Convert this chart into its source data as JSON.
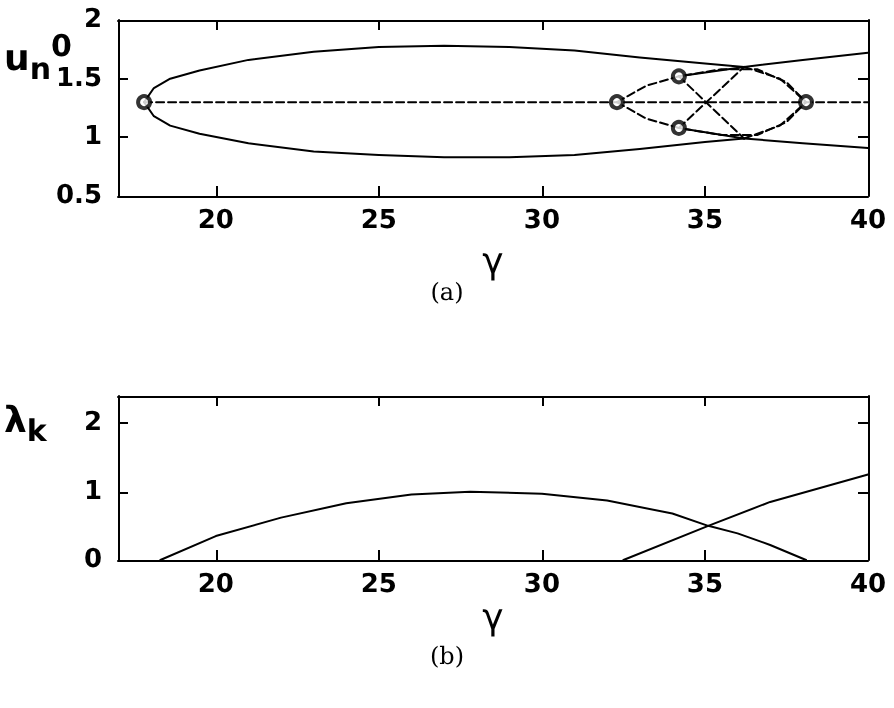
{
  "chart_data": [
    {
      "type": "line",
      "xlabel": "γ",
      "ylabel": "u$_{n}$$^{0}$",
      "annotations": [
        "(a)"
      ],
      "xlim": [
        17,
        40
      ],
      "xticks": [
        20,
        25,
        30,
        35,
        40
      ],
      "ylim": [
        0.5,
        2
      ],
      "yticks": [
        0.5,
        1,
        1.5,
        2
      ],
      "grid": false,
      "series": [
        {
          "color": "#000000",
          "line_style": "dashed",
          "x": [
            17.8,
            40
          ],
          "values": [
            1.3,
            1.3
          ]
        },
        {
          "color": "#000000",
          "line_style": "solid",
          "x": [
            17.8,
            18.1,
            18.6,
            19.5,
            21,
            23,
            25,
            27,
            29,
            31,
            33,
            35,
            36.2
          ],
          "values": [
            1.3,
            1.42,
            1.5,
            1.57,
            1.66,
            1.73,
            1.77,
            1.78,
            1.77,
            1.74,
            1.68,
            1.63,
            1.6
          ]
        },
        {
          "color": "#000000",
          "line_style": "solid",
          "x": [
            17.8,
            18.1,
            18.6,
            19.5,
            21,
            23,
            25,
            27,
            29,
            31,
            33,
            35,
            36.2
          ],
          "values": [
            1.3,
            1.18,
            1.1,
            1.03,
            0.95,
            0.88,
            0.85,
            0.83,
            0.83,
            0.85,
            0.9,
            0.96,
            0.99
          ]
        },
        {
          "color": "#000000",
          "line_style": "dashed",
          "x": [
            36.2,
            37.3,
            38.1
          ],
          "values": [
            1.6,
            1.5,
            1.3
          ]
        },
        {
          "color": "#000000",
          "line_style": "dashed",
          "x": [
            36.2,
            37.3,
            38.1
          ],
          "values": [
            0.99,
            1.1,
            1.3
          ]
        },
        {
          "color": "#000000",
          "line_style": "solid",
          "x": [
            34.2,
            36.2,
            38,
            40
          ],
          "values": [
            1.52,
            1.6,
            1.66,
            1.72
          ]
        },
        {
          "color": "#000000",
          "line_style": "solid",
          "x": [
            34.2,
            36.2,
            38,
            40
          ],
          "values": [
            1.08,
            0.99,
            0.95,
            0.91
          ]
        },
        {
          "color": "#000000",
          "line_style": "dashed",
          "x": [
            32.3,
            33.2,
            34.2,
            35.5,
            36.6,
            37.5,
            38.1
          ],
          "values": [
            1.3,
            1.44,
            1.52,
            1.58,
            1.58,
            1.47,
            1.3
          ]
        },
        {
          "color": "#000000",
          "line_style": "dashed",
          "x": [
            32.3,
            33.2,
            34.2,
            35.5,
            36.6,
            37.5,
            38.1
          ],
          "values": [
            1.3,
            1.16,
            1.08,
            1.02,
            1.02,
            1.13,
            1.3
          ]
        },
        {
          "color": "#000000",
          "line_style": "dashed",
          "x": [
            34.2,
            36.2
          ],
          "values": [
            1.52,
            0.99
          ]
        },
        {
          "color": "#000000",
          "line_style": "dashed",
          "x": [
            34.2,
            36.2
          ],
          "values": [
            1.08,
            1.6
          ]
        },
        {
          "type": "scatter",
          "marker": "circle",
          "color": "#000000",
          "x": [
            17.8,
            32.3,
            38.1,
            34.2,
            34.2
          ],
          "values": [
            1.3,
            1.3,
            1.3,
            1.52,
            1.08
          ]
        }
      ]
    },
    {
      "type": "line",
      "xlabel": "γ",
      "ylabel": "λ$_{k}$",
      "annotations": [
        "(b)"
      ],
      "xlim": [
        17,
        40
      ],
      "xticks": [
        20,
        25,
        30,
        35,
        40
      ],
      "ylim": [
        0,
        2.4
      ],
      "yticks": [
        0,
        1,
        2
      ],
      "grid": false,
      "series": [
        {
          "color": "#000000",
          "line_style": "solid",
          "x": [
            18.3,
            20,
            22,
            24,
            26,
            27.8,
            30,
            32,
            34,
            35.1,
            36,
            37,
            38.1
          ],
          "values": [
            0,
            0.35,
            0.62,
            0.83,
            0.96,
            1,
            0.97,
            0.87,
            0.68,
            0.5,
            0.39,
            0.22,
            0
          ]
        },
        {
          "color": "#000000",
          "line_style": "solid",
          "x": [
            32.5,
            35.1,
            37,
            40
          ],
          "values": [
            0,
            0.5,
            0.85,
            1.25
          ]
        }
      ]
    }
  ]
}
